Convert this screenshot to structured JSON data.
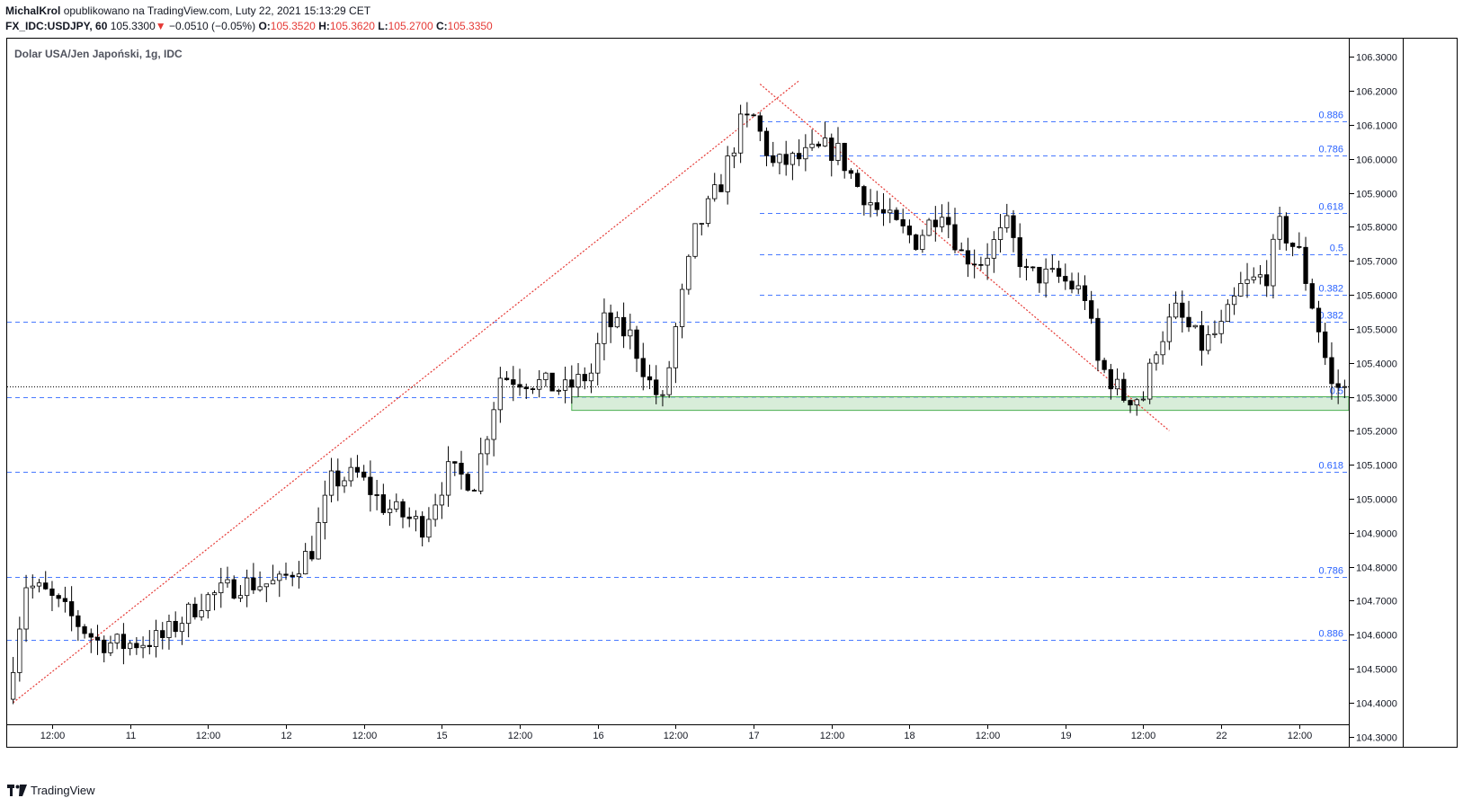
{
  "header": {
    "author": "MichalKrol",
    "published": "opublikowano na TradingView.com, Luty 22, 2021 15:13:29 CET",
    "symbol": "FX_IDC:USDJPY, 60",
    "last": "105.3300",
    "arrow": "▼",
    "change": "−0.0510 (−0.05%)",
    "o_label": "O:",
    "o_value": "105.3520",
    "h_label": "H:",
    "h_value": "105.3620",
    "l_label": "L:",
    "l_value": "105.2700",
    "c_label": "C:",
    "c_value": "105.3350"
  },
  "footer": {
    "brand": "TradingView"
  },
  "colors": {
    "up_body": "#ffffff",
    "down_body": "#000000",
    "wick": "#000000",
    "fib_line": "#2962ff",
    "fib_label": "#2962ff",
    "trend": "#e53935",
    "zone_fill": "#c8e6c9",
    "zone_border": "#4caf50",
    "price_line": "#000000"
  },
  "chart_data": {
    "type": "candlestick",
    "title": "Dolar USA/Jen Japoński, 1g, IDC",
    "ylim": [
      104.27,
      106.33
    ],
    "y_ticks": [
      "104.3000",
      "104.4000",
      "104.5000",
      "104.6000",
      "104.7000",
      "104.8000",
      "104.9000",
      "105.0000",
      "105.1000",
      "105.2000",
      "105.3000",
      "105.4000",
      "105.5000",
      "105.6000",
      "105.7000",
      "105.8000",
      "105.9000",
      "106.0000",
      "106.1000",
      "106.2000",
      "106.3000"
    ],
    "x_ticks": [
      {
        "label": "12:00",
        "bar": 6
      },
      {
        "label": "11",
        "bar": 18
      },
      {
        "label": "12:00",
        "bar": 30
      },
      {
        "label": "12",
        "bar": 42
      },
      {
        "label": "12:00",
        "bar": 54
      },
      {
        "label": "15",
        "bar": 66
      },
      {
        "label": "12:00",
        "bar": 78
      },
      {
        "label": "16",
        "bar": 90
      },
      {
        "label": "12:00",
        "bar": 102
      },
      {
        "label": "17",
        "bar": 114
      },
      {
        "label": "12:00",
        "bar": 126
      },
      {
        "label": "18",
        "bar": 138
      },
      {
        "label": "12:00",
        "bar": 150
      },
      {
        "label": "19",
        "bar": 162
      },
      {
        "label": "12:00",
        "bar": 174
      },
      {
        "label": "22",
        "bar": 186
      },
      {
        "label": "12:00",
        "bar": 198
      }
    ],
    "anchors": [
      [
        0,
        104.41
      ],
      [
        3,
        104.75
      ],
      [
        6,
        104.72
      ],
      [
        10,
        104.65
      ],
      [
        14,
        104.58
      ],
      [
        18,
        104.57
      ],
      [
        24,
        104.59
      ],
      [
        30,
        104.7
      ],
      [
        36,
        104.75
      ],
      [
        42,
        104.75
      ],
      [
        47,
        104.85
      ],
      [
        50,
        105.05
      ],
      [
        54,
        105.07
      ],
      [
        58,
        104.98
      ],
      [
        64,
        104.92
      ],
      [
        68,
        105.08
      ],
      [
        72,
        105.05
      ],
      [
        74,
        105.2
      ],
      [
        76,
        105.36
      ],
      [
        80,
        105.35
      ],
      [
        86,
        105.32
      ],
      [
        90,
        105.37
      ],
      [
        92,
        105.52
      ],
      [
        96,
        105.48
      ],
      [
        99,
        105.34
      ],
      [
        101,
        105.28
      ],
      [
        103,
        105.5
      ],
      [
        106,
        105.78
      ],
      [
        110,
        105.93
      ],
      [
        113,
        106.1
      ],
      [
        115,
        106.12
      ],
      [
        118,
        105.98
      ],
      [
        122,
        106.0
      ],
      [
        126,
        106.03
      ],
      [
        128,
        106.02
      ],
      [
        131,
        105.92
      ],
      [
        134,
        105.85
      ],
      [
        137,
        105.8
      ],
      [
        140,
        105.76
      ],
      [
        144,
        105.86
      ],
      [
        147,
        105.72
      ],
      [
        150,
        105.7
      ],
      [
        154,
        105.8
      ],
      [
        157,
        105.66
      ],
      [
        162,
        105.65
      ],
      [
        166,
        105.6
      ],
      [
        168,
        105.4
      ],
      [
        172,
        105.3
      ],
      [
        175,
        105.3
      ],
      [
        177,
        105.45
      ],
      [
        180,
        105.55
      ],
      [
        184,
        105.45
      ],
      [
        187,
        105.5
      ],
      [
        190,
        105.62
      ],
      [
        194,
        105.66
      ],
      [
        196,
        105.8
      ],
      [
        199,
        105.72
      ],
      [
        202,
        105.5
      ],
      [
        204,
        105.33
      ]
    ],
    "fib_levels": [
      {
        "label": "0.886",
        "value": 106.11
      },
      {
        "label": "0.786",
        "value": 106.01
      },
      {
        "label": "0.618",
        "value": 105.84
      },
      {
        "label": "0.5",
        "value": 105.72
      },
      {
        "label": "0.382",
        "value": 105.6
      },
      {
        "label": "0.382",
        "value": 105.52
      },
      {
        "label": "0.5",
        "value": 105.3
      },
      {
        "label": "0.618",
        "value": 105.08
      },
      {
        "label": "0.786",
        "value": 104.77
      },
      {
        "label": "0.886",
        "value": 104.585
      }
    ],
    "support_zone": {
      "top": 105.3,
      "bottom": 105.26,
      "from_bar": 86,
      "to_bar": 205
    },
    "last_price": 105.33,
    "trendlines": [
      {
        "from": [
          0,
          104.4
        ],
        "to": [
          121,
          106.23
        ]
      },
      {
        "from": [
          115,
          106.22
        ],
        "to": [
          178,
          105.2
        ]
      }
    ]
  }
}
